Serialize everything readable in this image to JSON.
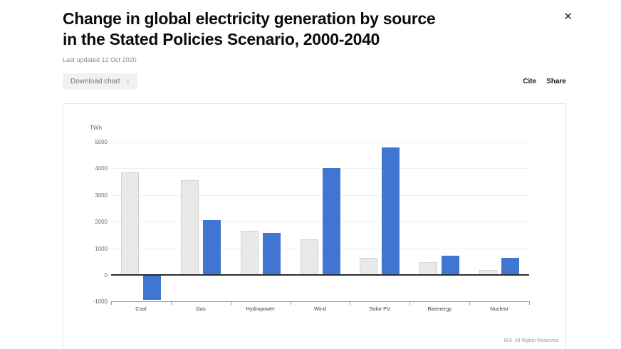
{
  "header": {
    "title_line1": "Change in global electricity generation by source",
    "title_line2": "in the Stated Policies Scenario, 2000-2040",
    "last_updated": "Last updated 12 Oct 2020",
    "close_icon": "✕"
  },
  "toolbar": {
    "download_label": "Download chart",
    "download_icon": "↓",
    "cite_label": "Cite",
    "share_label": "Share"
  },
  "chart": {
    "unit_label": "TWh",
    "footer": "IEA. All Rights Reserved",
    "colors": {
      "grey_bar": "#e9e9e9",
      "grey_bar_border": "#d2d2d2",
      "blue_bar": "#4076d2",
      "zero_line": "#2d2d2d",
      "grid_line": "#f1f1f1",
      "axis_line": "#9a9a9a"
    }
  },
  "chart_data": {
    "type": "bar",
    "title": "Change in global electricity generation by source in the Stated Policies Scenario, 2000-2040",
    "unit": "TWh",
    "ylabel": "TWh",
    "ylim": [
      -1000,
      5300
    ],
    "yticks": [
      5000,
      4000,
      3000,
      2000,
      1000,
      0,
      -1000
    ],
    "grid": true,
    "legend": "none",
    "categories": [
      "Coal",
      "Gas",
      "Hydropower",
      "Wind",
      "Solar PV",
      "Bioenergy",
      "Nuclear"
    ],
    "series": [
      {
        "name": "grey",
        "color": "#e9e9e9",
        "values": [
          3860,
          3550,
          1650,
          1350,
          650,
          480,
          190
        ]
      },
      {
        "name": "blue",
        "color": "#4076d2",
        "values": [
          -930,
          2050,
          1580,
          4000,
          4800,
          730,
          650
        ]
      }
    ]
  }
}
